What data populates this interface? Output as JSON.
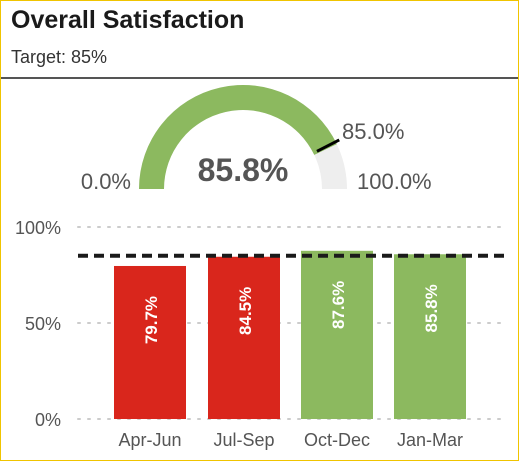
{
  "header": {
    "title": "Overall Satisfaction",
    "subtitle": "Target: 85%"
  },
  "chart_data": [
    {
      "type": "gauge",
      "value": 85.8,
      "value_label": "85.8%",
      "min": 0,
      "max": 100,
      "min_label": "0.0%",
      "max_label": "100.0%",
      "target": 85,
      "target_label": "85.0%",
      "fill_color": "#8cb95f",
      "track_color": "#eeeeee",
      "target_marker_color": "#000000"
    },
    {
      "type": "bar",
      "categories": [
        "Apr-Jun",
        "Jul-Sep",
        "Oct-Dec",
        "Jan-Mar"
      ],
      "values": [
        79.7,
        84.5,
        87.6,
        85.8
      ],
      "data_labels": [
        "79.7%",
        "84.5%",
        "87.6%",
        "85.8%"
      ],
      "ylim": [
        0,
        100
      ],
      "yticks": [
        0,
        50,
        100
      ],
      "ytick_labels": [
        "0%",
        "50%",
        "100%"
      ],
      "target_line": 85,
      "grid": "dotted horizontal",
      "colors": {
        "below_target": "#d9261c",
        "at_or_above_target": "#8cb95f",
        "target_line": "#1a1a1a",
        "grid": "#cccccc"
      }
    }
  ]
}
